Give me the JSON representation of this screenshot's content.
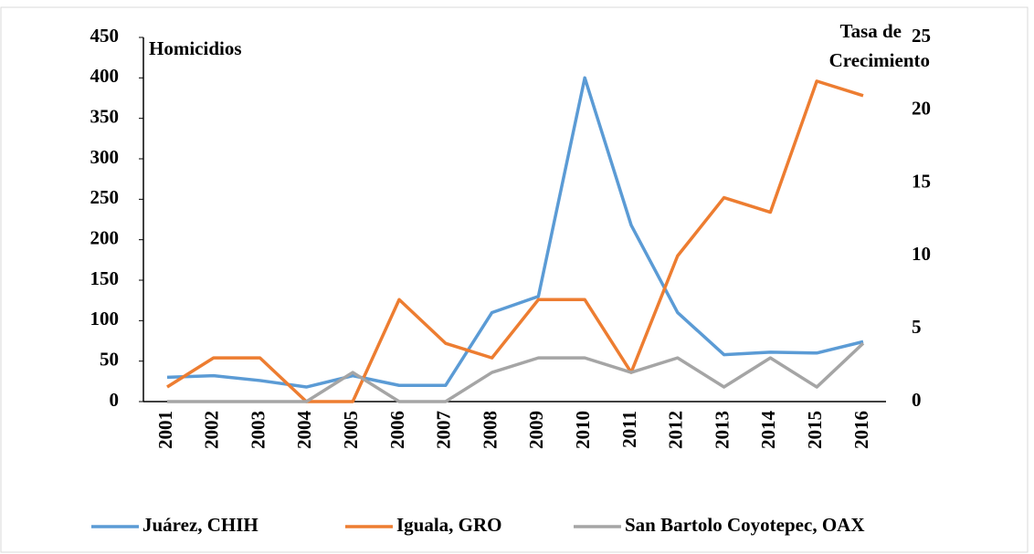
{
  "chart_data": {
    "type": "line",
    "y_label": "Homicidios",
    "y2_label": [
      "Tasa de",
      "Crecimiento"
    ],
    "categories": [
      "2001",
      "2002",
      "2003",
      "2004",
      "2005",
      "2006",
      "2007",
      "2008",
      "2009",
      "2010",
      "2011",
      "2012",
      "2013",
      "2014",
      "2015",
      "2016"
    ],
    "series": [
      {
        "name": "Juárez, CHIH",
        "color": "#5b9bd5",
        "values": [
          30,
          32,
          26,
          18,
          32,
          20,
          20,
          110,
          130,
          400,
          218,
          110,
          58,
          61,
          60,
          74
        ]
      },
      {
        "name": "Iguala, GRO",
        "color": "#ed7d31",
        "axis": "y2",
        "values": [
          1,
          3,
          3,
          0,
          0,
          7,
          4,
          3,
          7,
          7,
          2,
          10,
          14,
          13,
          22,
          21
        ]
      },
      {
        "name": "San Bartolo Coyotepec, OAX",
        "color": "#a5a5a5",
        "axis": "y2",
        "values": [
          0,
          0,
          0,
          0,
          2,
          0,
          0,
          2,
          3,
          3,
          2,
          3,
          1,
          3,
          1,
          4
        ]
      }
    ],
    "ylim": [
      0,
      450
    ],
    "yticks": [
      0,
      50,
      100,
      150,
      200,
      250,
      300,
      350,
      400,
      450
    ],
    "y2lim": [
      0,
      25
    ],
    "y2ticks": [
      0,
      5,
      10,
      15,
      20,
      25
    ],
    "legend": "bottom"
  }
}
